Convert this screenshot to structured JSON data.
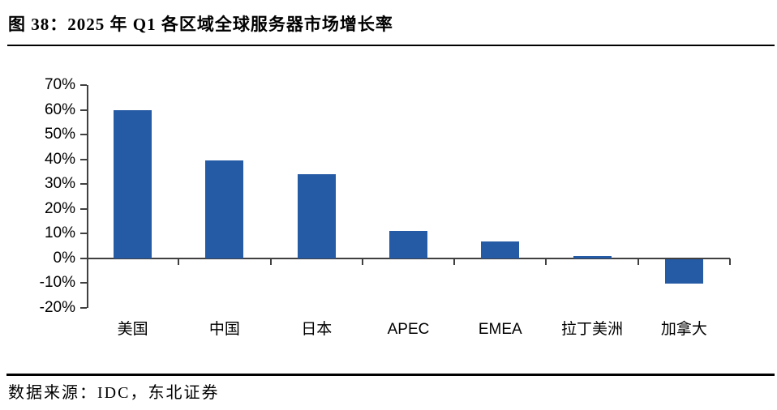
{
  "header": {
    "title": "图 38：2025 年 Q1 各区域全球服务器市场增长率"
  },
  "chart_data": {
    "type": "bar",
    "title": "2025 年 Q1 各区域全球服务器市场增长率",
    "categories": [
      "美国",
      "中国",
      "日本",
      "APEC",
      "EMEA",
      "拉丁美洲",
      "加拿大"
    ],
    "values": [
      60,
      39.7,
      34,
      11,
      7,
      1,
      -10
    ],
    "value_unit": "%",
    "xlabel": "",
    "ylabel": "",
    "ylim": [
      -20,
      70
    ],
    "yticks": [
      70,
      60,
      50,
      40,
      30,
      20,
      10,
      0,
      -10,
      -20
    ],
    "ytick_labels": [
      "70%",
      "60%",
      "50%",
      "40%",
      "30%",
      "20%",
      "10%",
      "0%",
      "-10%",
      "-20%"
    ],
    "grid": false,
    "legend_position": "none",
    "bar_color": "#255AA5",
    "axis_color": "#404040"
  },
  "footer": {
    "source": "数据来源：IDC，东北证券"
  }
}
